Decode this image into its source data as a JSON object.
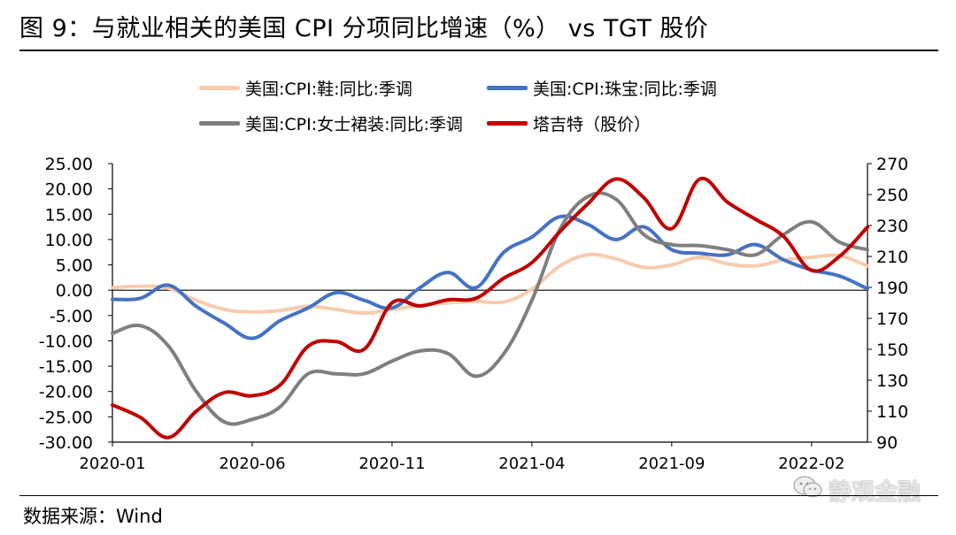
{
  "header": {
    "title": "图 9：与就业相关的美国 CPI 分项同比增速（%） vs TGT 股价"
  },
  "footer": {
    "source": "数据来源：Wind",
    "watermark": "静观金融"
  },
  "chart_data": {
    "type": "line",
    "title": "图 9：与就业相关的美国 CPI 分项同比增速（%） vs TGT 股价",
    "x_ticks": [
      "2020-01",
      "2020-06",
      "2020-11",
      "2021-04",
      "2021-09",
      "2022-02"
    ],
    "y_left": {
      "range": [
        -30,
        25
      ],
      "ticks": [
        "25.00",
        "20.00",
        "15.00",
        "10.00",
        "5.00",
        "0.00",
        "-5.00",
        "-10.00",
        "-15.00",
        "-20.00",
        "-25.00",
        "-30.00"
      ]
    },
    "y_right": {
      "range": [
        90,
        270
      ],
      "ticks": [
        "270",
        "250",
        "230",
        "210",
        "190",
        "170",
        "150",
        "130",
        "110",
        "90"
      ]
    },
    "x_range": [
      0,
      27
    ],
    "series": [
      {
        "name": "美国:CPI:鞋:同比:季调",
        "color": "#F8CBAD",
        "axis": "left",
        "x": [
          0,
          1,
          2,
          3,
          4,
          5,
          6,
          7,
          8,
          9,
          10,
          11,
          12,
          13,
          14,
          15,
          16,
          17,
          18,
          19,
          20,
          21,
          22,
          23,
          24,
          25,
          26,
          27
        ],
        "values": [
          0.5,
          0.8,
          0.4,
          -2.0,
          -3.8,
          -4.3,
          -4.0,
          -3.2,
          -3.8,
          -4.5,
          -3.8,
          -3.0,
          -2.5,
          -2.2,
          -2.3,
          0.2,
          4.8,
          7.0,
          6.2,
          4.5,
          5.0,
          6.5,
          5.2,
          4.8,
          6.0,
          6.5,
          6.8,
          4.8
        ]
      },
      {
        "name": "美国:CPI:珠宝:同比:季调",
        "color": "#4472C4",
        "axis": "left",
        "x": [
          0,
          1,
          2,
          3,
          4,
          5,
          6,
          7,
          8,
          9,
          10,
          11,
          12,
          13,
          14,
          15,
          16,
          17,
          18,
          19,
          20,
          21,
          22,
          23,
          24,
          25,
          26,
          27
        ],
        "values": [
          -1.8,
          -1.6,
          1.0,
          -3.2,
          -6.5,
          -9.5,
          -6.0,
          -3.5,
          -0.5,
          -2.0,
          -3.5,
          0.5,
          3.5,
          0.5,
          7.5,
          10.5,
          14.5,
          13.0,
          10.0,
          12.5,
          8.0,
          7.3,
          7.0,
          9.0,
          6.0,
          4.0,
          2.8,
          0.3
        ]
      },
      {
        "name": "美国:CPI:女士裙装:同比:季调",
        "color": "#7F7F7F",
        "axis": "left",
        "x": [
          0,
          1,
          2,
          3,
          4,
          5,
          6,
          7,
          8,
          9,
          10,
          11,
          12,
          13,
          14,
          15,
          16,
          17,
          18,
          19,
          20,
          21,
          22,
          23,
          24,
          25,
          26,
          27
        ],
        "values": [
          -8.5,
          -7.0,
          -11.0,
          -20.0,
          -26.0,
          -25.5,
          -23.0,
          -16.5,
          -16.5,
          -16.5,
          -14.0,
          -12.0,
          -12.5,
          -17.0,
          -12.5,
          -2.0,
          12.0,
          18.5,
          18.0,
          11.0,
          9.0,
          8.8,
          8.0,
          7.0,
          11.0,
          13.5,
          9.5,
          8.0
        ]
      },
      {
        "name": "塔吉特（股价）",
        "color": "#C00000",
        "axis": "right",
        "x": [
          0,
          1,
          2,
          3,
          4,
          5,
          6,
          7,
          8,
          9,
          10,
          11,
          12,
          13,
          14,
          15,
          16,
          17,
          18,
          19,
          20,
          21,
          22,
          23,
          24,
          25,
          26,
          27
        ],
        "values": [
          114,
          106,
          93,
          110,
          122,
          120,
          127,
          152,
          155,
          150,
          180,
          178,
          182,
          183,
          196,
          206,
          226,
          244,
          260,
          248,
          228,
          260,
          245,
          234,
          223,
          201,
          210,
          229
        ]
      }
    ]
  }
}
